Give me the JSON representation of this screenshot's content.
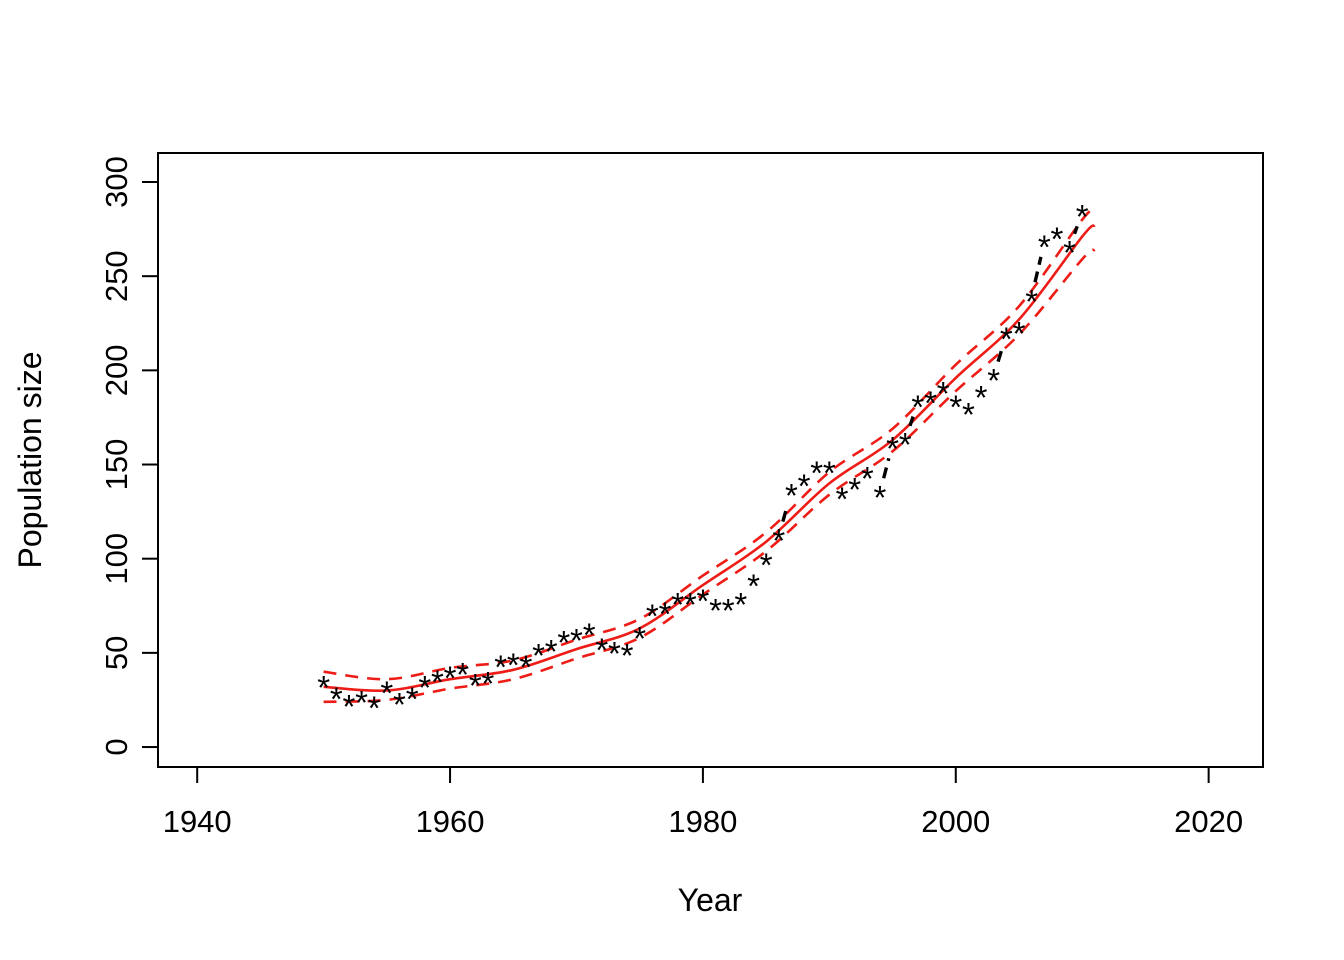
{
  "figure": {
    "xlabel": "Year",
    "ylabel": "Population size",
    "background": "#ffffff",
    "axis_color": "#000000",
    "point_color": "#000000",
    "fit_color": "#ee1c16",
    "band_color": "#ee1c16"
  },
  "chart_data": {
    "type": "scatter",
    "title": "",
    "xlabel": "Year",
    "ylabel": "Population size",
    "x_ticks": [
      1940,
      1960,
      1980,
      2000,
      2020
    ],
    "y_ticks": [
      0,
      50,
      100,
      150,
      200,
      250,
      300
    ],
    "xlim": [
      1936.9,
      2024.3
    ],
    "ylim": [
      -10.6,
      315.4
    ],
    "grid": false,
    "legend": "none",
    "series": [
      {
        "name": "observed-population",
        "type": "points",
        "marker": "*",
        "color": "#000000",
        "line_style": "dashed-between-distant-points",
        "years": [
          1950,
          1951,
          1952,
          1953,
          1954,
          1955,
          1956,
          1957,
          1958,
          1959,
          1960,
          1961,
          1962,
          1963,
          1964,
          1965,
          1966,
          1967,
          1968,
          1969,
          1970,
          1971,
          1972,
          1973,
          1974,
          1975,
          1976,
          1977,
          1978,
          1979,
          1980,
          1981,
          1982,
          1983,
          1984,
          1985,
          1986,
          1987,
          1988,
          1989,
          1990,
          1991,
          1992,
          1993,
          1994,
          1995,
          1996,
          1997,
          1998,
          1999,
          2000,
          2001,
          2002,
          2003,
          2004,
          2005,
          2006,
          2007,
          2008,
          2009,
          2010
        ],
        "values": [
          34,
          28,
          24,
          26,
          23,
          31,
          25,
          28,
          34,
          37,
          39,
          41,
          35,
          36,
          45,
          46,
          45,
          51,
          53,
          58,
          59,
          62,
          54,
          52,
          51,
          60,
          72,
          73,
          78,
          78,
          80,
          75,
          75,
          78,
          88,
          99,
          112,
          136,
          141,
          148,
          148,
          134,
          139,
          145,
          135,
          161,
          163,
          183,
          185,
          190,
          183,
          179,
          188,
          197,
          219,
          222,
          239,
          268,
          272,
          265,
          284
        ]
      },
      {
        "name": "model-fit",
        "type": "line",
        "style": "solid",
        "color": "#ee1c16",
        "years": [
          1950,
          1955,
          1960,
          1965,
          1970,
          1975,
          1980,
          1985,
          1990,
          1995,
          2000,
          2005,
          2010,
          2011
        ],
        "values": [
          32,
          30,
          36,
          41,
          52,
          63,
          86,
          109,
          140,
          163,
          196,
          227,
          271,
          277
        ]
      },
      {
        "name": "confidence-upper",
        "type": "line",
        "style": "dashed",
        "color": "#ee1c16",
        "years": [
          1950,
          1955,
          1960,
          1965,
          1970,
          1975,
          1980,
          1985,
          1990,
          1995,
          2000,
          2005,
          2010,
          2011
        ],
        "values": [
          40,
          36,
          42,
          46,
          57,
          68,
          91,
          114,
          146,
          169,
          203,
          234,
          280,
          285
        ]
      },
      {
        "name": "confidence-lower",
        "type": "line",
        "style": "dashed",
        "color": "#ee1c16",
        "years": [
          1950,
          1955,
          1960,
          1965,
          1970,
          1975,
          1980,
          1985,
          1990,
          1995,
          2000,
          2005,
          2010,
          2011
        ],
        "values": [
          24,
          25,
          31,
          36,
          47,
          58,
          81,
          104,
          134,
          157,
          189,
          219,
          259,
          264
        ]
      }
    ]
  }
}
